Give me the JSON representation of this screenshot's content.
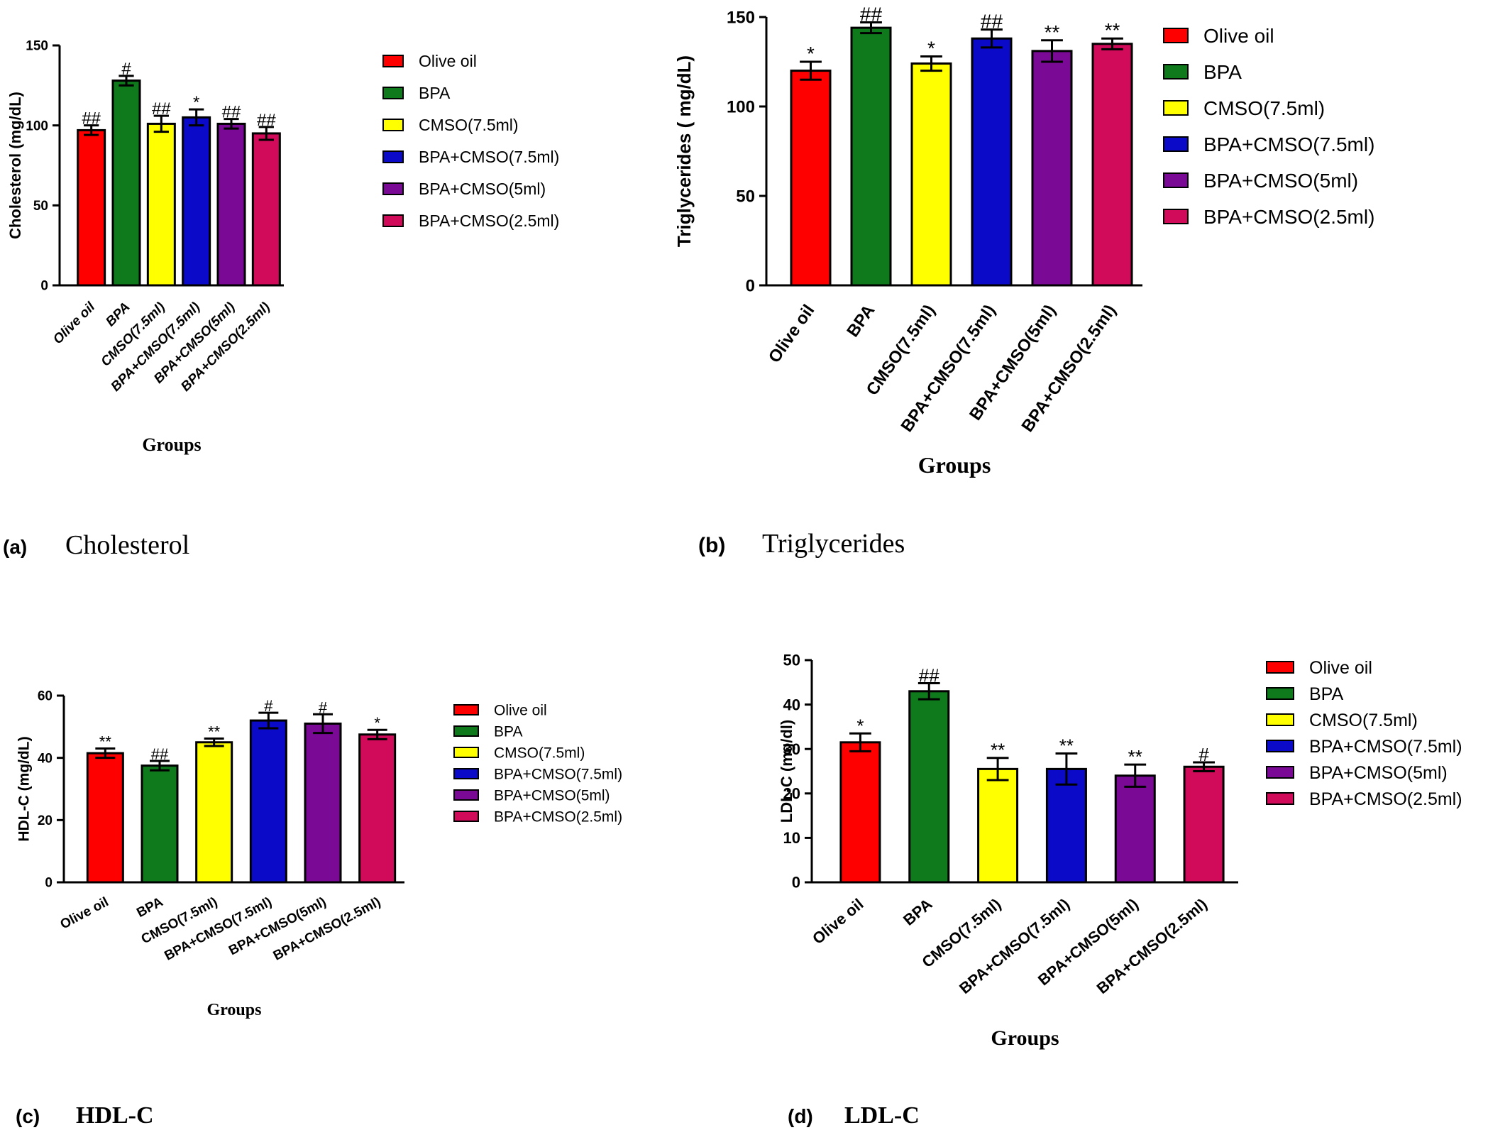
{
  "colors": {
    "Olive oil": "#ff0000",
    "BPA": "#0e7a1c",
    "CMSO(7.5ml)": "#ffff00",
    "BPA+CMSO(7.5ml)": "#0a0ac8",
    "BPA+CMSO(5ml)": "#7a0a96",
    "BPA+CMSO(2.5ml)": "#d10a5a"
  },
  "chart_data": [
    {
      "type": "bar",
      "panel_label": "(a)",
      "panel_name": "Cholesterol",
      "title": "",
      "xlabel": "Groups",
      "ylabel": "Cholesterol (mg/dL)",
      "ylim": [
        0,
        150
      ],
      "yticks": [
        0,
        50,
        100,
        150
      ],
      "grid": false,
      "legend_position": "right",
      "categories": [
        "Olive oil",
        "BPA",
        "CMSO(7.5ml)",
        "BPA+CMSO(7.5ml)",
        "BPA+CMSO(5ml)",
        "BPA+CMSO(2.5ml)"
      ],
      "values": [
        97,
        128,
        101,
        105,
        101,
        95
      ],
      "errors": [
        3,
        3,
        5,
        5,
        3,
        4
      ],
      "significance": [
        "##",
        "#",
        "##",
        "*",
        "##",
        "##"
      ],
      "legend": [
        "Olive oil",
        "BPA",
        "CMSO(7.5ml)",
        "BPA+CMSO(7.5ml)",
        "BPA+CMSO(5ml)",
        "BPA+CMSO(2.5ml)"
      ]
    },
    {
      "type": "bar",
      "panel_label": "(b)",
      "panel_name": "Triglycerides",
      "title": "",
      "xlabel": "Groups",
      "ylabel": "Triglycerides ( mg/dL)",
      "ylim": [
        0,
        150
      ],
      "yticks": [
        0,
        50,
        100,
        150
      ],
      "grid": false,
      "legend_position": "right",
      "categories": [
        "Olive oil",
        "BPA",
        "CMSO(7.5ml)",
        "BPA+CMSO(7.5ml)",
        "BPA+CMSO(5ml)",
        "BPA+CMSO(2.5ml)"
      ],
      "values": [
        120,
        144,
        124,
        138,
        131,
        135
      ],
      "errors": [
        5,
        3,
        4,
        5,
        6,
        3
      ],
      "significance": [
        "*",
        "##",
        "*",
        "##",
        "**",
        "**"
      ],
      "legend": [
        "Olive oil",
        "BPA",
        "CMSO(7.5ml)",
        "BPA+CMSO(7.5ml)",
        "BPA+CMSO(5ml)",
        "BPA+CMSO(2.5ml)"
      ]
    },
    {
      "type": "bar",
      "panel_label": "(c)",
      "panel_name": "HDL-C",
      "title": "",
      "xlabel": "Groups",
      "ylabel": "HDL-C (mg/dL)",
      "ylim": [
        0,
        60
      ],
      "yticks": [
        0,
        20,
        40,
        60
      ],
      "grid": false,
      "legend_position": "right",
      "categories": [
        "Olive oil",
        "BPA",
        "CMSO(7.5ml)",
        "BPA+CMSO(7.5ml)",
        "BPA+CMSO(5ml)",
        "BPA+CMSO(2.5ml)"
      ],
      "values": [
        41.5,
        37.5,
        45,
        52,
        51,
        47.5
      ],
      "errors": [
        1.5,
        1.5,
        1.2,
        2.5,
        3,
        1.5
      ],
      "significance": [
        "**",
        "##",
        "**",
        "#",
        "#",
        "*"
      ],
      "legend": [
        "Olive oil",
        "BPA",
        "CMSO(7.5ml)",
        "BPA+CMSO(7.5ml)",
        "BPA+CMSO(5ml)",
        "BPA+CMSO(2.5ml)"
      ]
    },
    {
      "type": "bar",
      "panel_label": "(d)",
      "panel_name": "LDL-C",
      "title": "",
      "xlabel": "Groups",
      "ylabel": "LDL-C (mg/dl)",
      "ylim": [
        0,
        50
      ],
      "yticks": [
        0,
        10,
        20,
        30,
        40,
        50
      ],
      "grid": false,
      "legend_position": "right",
      "categories": [
        "Olive oil",
        "BPA",
        "CMSO(7.5ml)",
        "BPA+CMSO(7.5ml)",
        "BPA+CMSO(5ml)",
        "BPA+CMSO(2.5ml)"
      ],
      "values": [
        31.5,
        43,
        25.5,
        25.5,
        24,
        26
      ],
      "errors": [
        2,
        1.8,
        2.5,
        3.5,
        2.5,
        1
      ],
      "significance": [
        "*",
        "##",
        "**",
        "**",
        "**",
        "#"
      ],
      "legend": [
        "Olive oil",
        "BPA",
        "CMSO(7.5ml)",
        "BPA+CMSO(7.5ml)",
        "BPA+CMSO(5ml)",
        "BPA+CMSO(2.5ml)"
      ]
    }
  ]
}
